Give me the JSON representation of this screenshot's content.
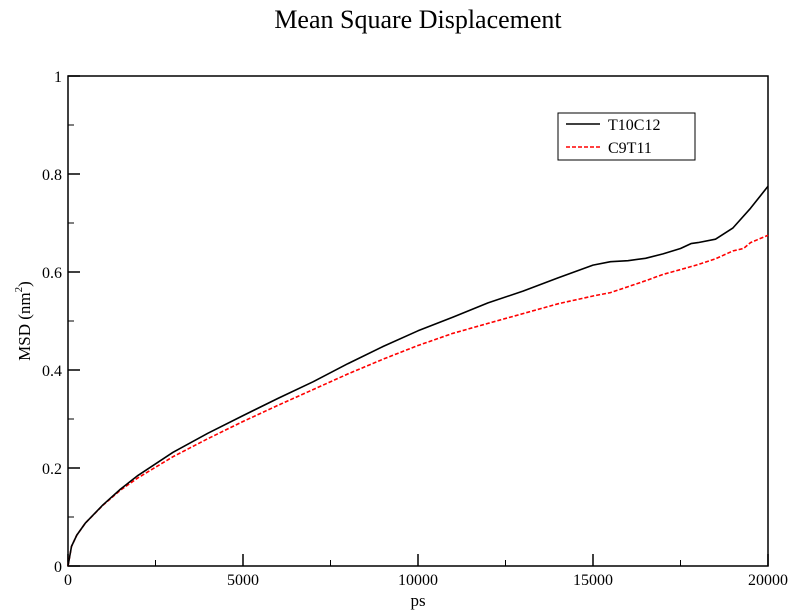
{
  "chart_data": {
    "type": "line",
    "title": "Mean Square Displacement",
    "xlabel": "ps",
    "ylabel": "MSD (nm",
    "ylabel_sup": "2",
    "ylabel_suffix": ")",
    "xlim": [
      0,
      20000
    ],
    "ylim": [
      0,
      1
    ],
    "x_ticks": [
      0,
      5000,
      10000,
      15000,
      20000
    ],
    "x_tick_labels": [
      "0",
      "5000",
      "10000",
      "15000",
      "20000"
    ],
    "y_ticks": [
      0,
      0.2,
      0.4,
      0.6,
      0.8,
      1
    ],
    "y_tick_labels": [
      "0",
      "0.2",
      "0.4",
      "0.6",
      "0.8",
      "1"
    ],
    "grid": false,
    "legend_position": "top-right",
    "series": [
      {
        "name": "T10C12",
        "color": "#000000",
        "dash": "solid",
        "x": [
          0,
          100,
          250,
          500,
          1000,
          1500,
          2000,
          3000,
          4000,
          5000,
          6000,
          7000,
          8000,
          9000,
          10000,
          11000,
          12000,
          13000,
          14000,
          15000,
          15500,
          16000,
          16500,
          17000,
          17500,
          17800,
          18000,
          18500,
          19000,
          19500,
          20000
        ],
        "y": [
          0,
          0.04,
          0.063,
          0.088,
          0.125,
          0.157,
          0.185,
          0.232,
          0.271,
          0.307,
          0.342,
          0.376,
          0.413,
          0.448,
          0.48,
          0.508,
          0.537,
          0.561,
          0.588,
          0.614,
          0.621,
          0.623,
          0.628,
          0.637,
          0.648,
          0.658,
          0.66,
          0.667,
          0.69,
          0.73,
          0.775
        ]
      },
      {
        "name": "C9T11",
        "color": "#ff0000",
        "dash": "dashed",
        "x": [
          0,
          100,
          250,
          500,
          1000,
          1500,
          2000,
          3000,
          4000,
          5000,
          6000,
          7000,
          8000,
          9000,
          10000,
          11000,
          12000,
          13000,
          14000,
          15000,
          15500,
          16000,
          16500,
          17000,
          17500,
          18000,
          18500,
          19000,
          19300,
          19500,
          20000
        ],
        "y": [
          0,
          0.04,
          0.063,
          0.088,
          0.124,
          0.155,
          0.18,
          0.223,
          0.26,
          0.295,
          0.328,
          0.36,
          0.392,
          0.422,
          0.45,
          0.475,
          0.495,
          0.515,
          0.535,
          0.551,
          0.558,
          0.57,
          0.582,
          0.595,
          0.605,
          0.615,
          0.627,
          0.643,
          0.648,
          0.66,
          0.675
        ]
      }
    ]
  }
}
